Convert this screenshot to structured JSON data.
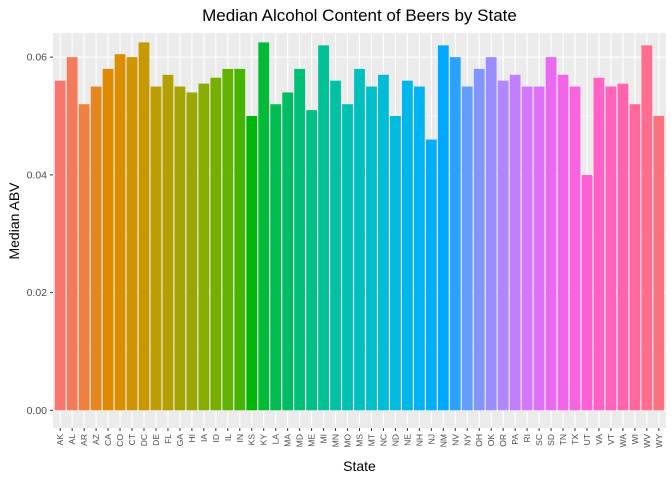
{
  "chart_data": {
    "type": "bar",
    "title": "Median Alcohol Content of Beers by State",
    "xlabel": "State",
    "ylabel": "Median ABV",
    "ylim": [
      -0.003,
      0.0641
    ],
    "yticks": [
      0.0,
      0.02,
      0.04,
      0.06
    ],
    "ytick_labels": [
      "0.00",
      "0.02",
      "0.04",
      "0.06"
    ],
    "grid": true,
    "legend": "none",
    "colors": {
      "panel_background": "#ebebeb",
      "grid_major": "#ffffff",
      "bar_palette": "ggplot2 default hue (one colour per state)"
    },
    "categories": [
      "AK",
      "AL",
      "AR",
      "AZ",
      "CA",
      "CO",
      "CT",
      "DC",
      "DE",
      "FL",
      "GA",
      "HI",
      "IA",
      "ID",
      "IL",
      "IN",
      "KS",
      "KY",
      "LA",
      "MA",
      "MD",
      "ME",
      "MI",
      "MN",
      "MO",
      "MS",
      "MT",
      "NC",
      "ND",
      "NE",
      "NH",
      "NJ",
      "NM",
      "NV",
      "NY",
      "OH",
      "OK",
      "OR",
      "PA",
      "RI",
      "SC",
      "SD",
      "TN",
      "TX",
      "UT",
      "VA",
      "VT",
      "WA",
      "WI",
      "WV",
      "WY"
    ],
    "values": [
      0.056,
      0.06,
      0.052,
      0.055,
      0.058,
      0.0605,
      0.06,
      0.0625,
      0.055,
      0.057,
      0.055,
      0.054,
      0.0555,
      0.0565,
      0.058,
      0.058,
      0.05,
      0.0625,
      0.052,
      0.054,
      0.058,
      0.051,
      0.062,
      0.056,
      0.052,
      0.058,
      0.055,
      0.057,
      0.05,
      0.056,
      0.055,
      0.046,
      0.062,
      0.06,
      0.055,
      0.058,
      0.06,
      0.056,
      0.057,
      0.055,
      0.055,
      0.06,
      0.057,
      0.055,
      0.04,
      0.0565,
      0.055,
      0.0555,
      0.052,
      0.062,
      0.05
    ]
  }
}
